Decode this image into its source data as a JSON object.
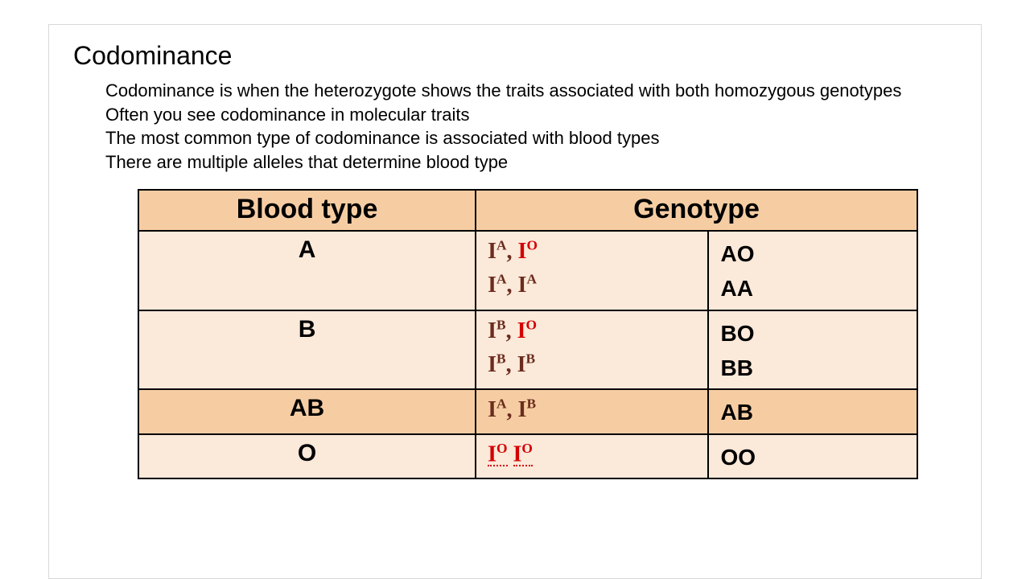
{
  "title": "Codominance",
  "paragraphs": [
    "Codominance is when the heterozygote shows the traits associated with both homozygous genotypes",
    "Often you see codominance in molecular traits",
    "The most common type of codominance is associated with blood types",
    "There are multiple alleles that determine blood type"
  ],
  "table": {
    "headers": {
      "col1": "Blood type",
      "col2": "Genotype"
    },
    "header_bg": "#f6cda3",
    "row_colors": {
      "dark": "#f6cda3",
      "light": "#fbe9da"
    },
    "allele_colors": {
      "dark": "#6b2c1e",
      "red": "#d40000"
    },
    "border_color": "#000000",
    "header_fontsize": 34,
    "cell_fontsize": 28,
    "rows": [
      {
        "blood_type": "A",
        "shade": "light",
        "genotypes": [
          [
            {
              "base": "I",
              "sup": "A",
              "color": "dark"
            },
            {
              "text": ", ",
              "color": "dark"
            },
            {
              "base": "I",
              "sup": "O",
              "color": "red"
            }
          ],
          [
            {
              "base": "I",
              "sup": "A",
              "color": "dark"
            },
            {
              "text": ", ",
              "color": "dark"
            },
            {
              "base": "I",
              "sup": "A",
              "color": "dark"
            }
          ]
        ],
        "phenos": [
          "AO",
          "AA"
        ]
      },
      {
        "blood_type": "B",
        "shade": "light",
        "genotypes": [
          [
            {
              "base": "I",
              "sup": "B",
              "color": "dark"
            },
            {
              "text": ", ",
              "color": "dark"
            },
            {
              "base": "I",
              "sup": "O",
              "color": "red"
            }
          ],
          [
            {
              "base": "I",
              "sup": "B",
              "color": "dark"
            },
            {
              "text": ", ",
              "color": "dark"
            },
            {
              "base": "I",
              "sup": "B",
              "color": "dark"
            }
          ]
        ],
        "phenos": [
          "BO",
          "BB"
        ]
      },
      {
        "blood_type": "AB",
        "shade": "dark",
        "genotypes": [
          [
            {
              "base": "I",
              "sup": "A",
              "color": "dark"
            },
            {
              "text": ", ",
              "color": "dark"
            },
            {
              "base": "I",
              "sup": "B",
              "color": "dark"
            }
          ]
        ],
        "phenos": [
          "AB"
        ]
      },
      {
        "blood_type": "O",
        "shade": "light",
        "genotypes": [
          [
            {
              "base": "I",
              "sup": "O",
              "color": "red",
              "squiggle": true
            },
            {
              "text": " ",
              "color": "red"
            },
            {
              "base": "I",
              "sup": "O",
              "color": "red",
              "squiggle": true
            }
          ]
        ],
        "phenos": [
          "OO"
        ]
      }
    ]
  },
  "colors": {
    "background": "#ffffff",
    "text": "#000000",
    "frame_border": "#d8d8d8"
  },
  "typography": {
    "title_fontsize": 32,
    "body_fontsize": 22,
    "font_family": "Arial"
  }
}
